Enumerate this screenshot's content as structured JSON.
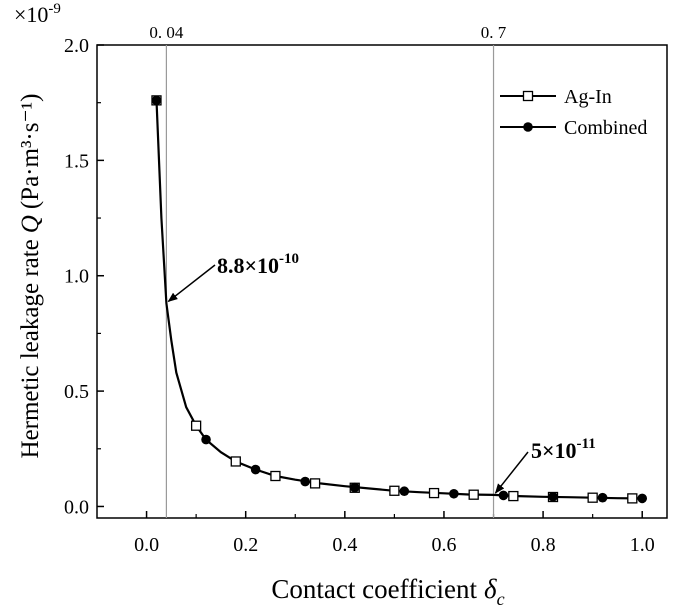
{
  "chart_data": {
    "type": "line",
    "title": "",
    "xlabel": "Contact coefficient",
    "xlabel_symbol": "δ",
    "xlabel_subscript": "c",
    "ylabel": "Hermetic leakage rate",
    "ylabel_symbol": "Q",
    "ylabel_unit": "(Pa·m³·s⁻¹)",
    "y_multiplier_base": "×10",
    "y_multiplier_exp": "-9",
    "xlim": [
      -0.1,
      1.05
    ],
    "ylim": [
      -0.05,
      2.0
    ],
    "xticks": [
      0.0,
      0.2,
      0.4,
      0.6,
      0.8,
      1.0
    ],
    "xtick_labels": [
      "0.0",
      "0.2",
      "0.4",
      "0.6",
      "0.8",
      "1.0"
    ],
    "yticks": [
      0.0,
      0.5,
      1.0,
      1.5,
      2.0
    ],
    "ytick_labels": [
      "0.0",
      "0.5",
      "1.0",
      "1.5",
      "2.0"
    ],
    "grid": false,
    "legend_position": "top-right",
    "series": [
      {
        "name": "Ag-In",
        "marker": "open-square",
        "x": [
          0.02,
          0.1,
          0.18,
          0.26,
          0.34,
          0.42,
          0.5,
          0.58,
          0.66,
          0.74,
          0.82,
          0.9,
          0.98
        ],
        "y": [
          1.76,
          0.35,
          0.195,
          0.132,
          0.1,
          0.081,
          0.068,
          0.058,
          0.051,
          0.045,
          0.041,
          0.038,
          0.035
        ]
      },
      {
        "name": "Combined",
        "marker": "filled-circle",
        "x": [
          0.02,
          0.12,
          0.22,
          0.32,
          0.42,
          0.52,
          0.62,
          0.72,
          0.82,
          0.92,
          1.0
        ],
        "y": [
          1.76,
          0.29,
          0.16,
          0.108,
          0.082,
          0.066,
          0.055,
          0.048,
          0.042,
          0.038,
          0.035
        ]
      }
    ],
    "curve": {
      "x": [
        0.02,
        0.03,
        0.04,
        0.05,
        0.06,
        0.08,
        0.1,
        0.12,
        0.15,
        0.18,
        0.22,
        0.26,
        0.3,
        0.35,
        0.4,
        0.45,
        0.5,
        0.55,
        0.6,
        0.65,
        0.7,
        0.75,
        0.8,
        0.85,
        0.9,
        0.95,
        1.0
      ],
      "y": [
        1.76,
        1.25,
        0.88,
        0.72,
        0.58,
        0.43,
        0.35,
        0.29,
        0.235,
        0.195,
        0.16,
        0.132,
        0.116,
        0.1,
        0.088,
        0.078,
        0.068,
        0.062,
        0.057,
        0.052,
        0.05,
        0.045,
        0.042,
        0.04,
        0.038,
        0.036,
        0.035
      ]
    },
    "reference_lines": [
      {
        "x": 0.04,
        "label": "0. 04"
      },
      {
        "x": 0.7,
        "label": "0. 7"
      }
    ],
    "annotations": [
      {
        "base": "8.8×10",
        "exp": "-10",
        "x": 0.04,
        "y": 0.88
      },
      {
        "base": "5×10",
        "exp": "-11",
        "x": 0.7,
        "y": 0.05
      }
    ]
  }
}
